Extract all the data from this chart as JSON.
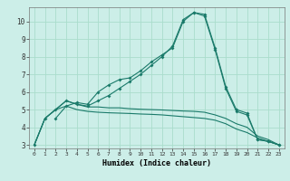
{
  "xlabel": "Humidex (Indice chaleur)",
  "bg_color": "#cceee8",
  "grid_color": "#aaddcc",
  "line_color": "#1a7a6a",
  "xlim": [
    -0.5,
    23.5
  ],
  "ylim": [
    2.8,
    10.8
  ],
  "yticks": [
    3,
    4,
    5,
    6,
    7,
    8,
    9,
    10
  ],
  "xticks": [
    0,
    1,
    2,
    3,
    4,
    5,
    6,
    7,
    8,
    9,
    10,
    11,
    12,
    13,
    14,
    15,
    16,
    17,
    18,
    19,
    20,
    21,
    22,
    23
  ],
  "line1_x": [
    0,
    1,
    2,
    3,
    4,
    5,
    6,
    7,
    8,
    9,
    10,
    11,
    12,
    13,
    14,
    15,
    16,
    17,
    18,
    19,
    20,
    21,
    22,
    23
  ],
  "line1_y": [
    3.0,
    4.5,
    5.0,
    5.5,
    5.3,
    5.2,
    5.5,
    5.8,
    6.2,
    6.6,
    7.0,
    7.5,
    8.0,
    8.6,
    10.1,
    10.5,
    10.4,
    8.5,
    6.3,
    5.0,
    4.8,
    3.3,
    3.2,
    3.0
  ],
  "line2_x": [
    0,
    1,
    2,
    3,
    4,
    5,
    6,
    7,
    8,
    9,
    10,
    11,
    12,
    13,
    14,
    15,
    16,
    17,
    18,
    19,
    20,
    21,
    22,
    23
  ],
  "line2_y": [
    3.0,
    4.5,
    5.0,
    5.2,
    5.0,
    4.9,
    4.85,
    4.82,
    4.8,
    4.78,
    4.75,
    4.73,
    4.7,
    4.65,
    4.6,
    4.55,
    4.5,
    4.4,
    4.2,
    3.9,
    3.7,
    3.4,
    3.2,
    3.0
  ],
  "line3_x": [
    0,
    1,
    2,
    3,
    4,
    5,
    6,
    7,
    8,
    9,
    10,
    11,
    12,
    13,
    14,
    15,
    16,
    17,
    18,
    19,
    20,
    21,
    22,
    23
  ],
  "line3_y": [
    3.0,
    4.5,
    5.0,
    5.5,
    5.3,
    5.15,
    5.15,
    5.1,
    5.1,
    5.05,
    5.02,
    5.0,
    4.98,
    4.95,
    4.92,
    4.9,
    4.85,
    4.7,
    4.5,
    4.2,
    4.0,
    3.5,
    3.3,
    3.0
  ],
  "line4_x": [
    2,
    3,
    4,
    5,
    6,
    7,
    8,
    9,
    10,
    11,
    12,
    13,
    14,
    15,
    16,
    17,
    18,
    19,
    20,
    21,
    22,
    23
  ],
  "line4_y": [
    4.5,
    5.2,
    5.4,
    5.3,
    6.0,
    6.4,
    6.7,
    6.8,
    7.2,
    7.7,
    8.1,
    8.5,
    10.0,
    10.5,
    10.3,
    8.4,
    6.2,
    4.9,
    4.7,
    3.3,
    3.2,
    3.0
  ]
}
